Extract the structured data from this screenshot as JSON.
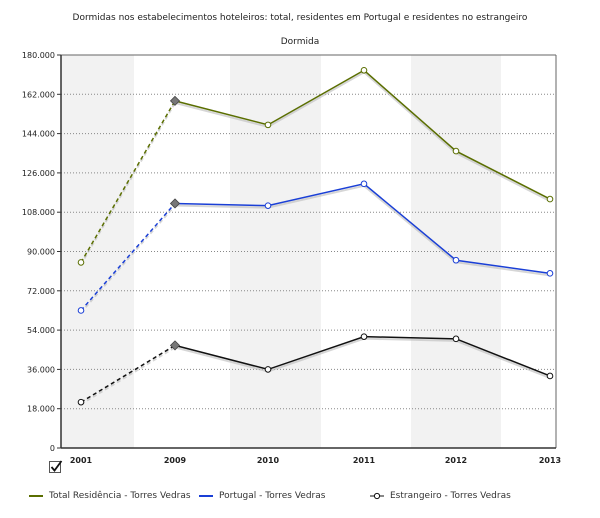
{
  "chart_data": {
    "type": "line",
    "title": "Dormidas nos estabelecimentos hoteleiros: total, residentes em Portugal e residentes no estrangeiro",
    "subtitle": "Dormida",
    "xlabel": "",
    "ylabel": "",
    "categories": [
      "2001",
      "2009",
      "2010",
      "2011",
      "2012",
      "2013"
    ],
    "ylim": [
      0,
      180000
    ],
    "yticks": [
      "0",
      "18.000",
      "36.000",
      "54.000",
      "72.000",
      "90.000",
      "108.000",
      "126.000",
      "144.000",
      "162.000",
      "180.000"
    ],
    "grid": true,
    "legend_position": "bottom",
    "series": [
      {
        "name": "Total Residência - Torres Vedras",
        "color": "#5a6e00",
        "values": [
          85000,
          159000,
          148000,
          173000,
          136000,
          114000
        ]
      },
      {
        "name": "Portugal - Torres Vedras",
        "color": "#1a3fd6",
        "values": [
          63000,
          112000,
          111000,
          121000,
          86000,
          80000
        ]
      },
      {
        "name": "Estrangeiro - Torres Vedras",
        "color": "#111111",
        "values": [
          21000,
          47000,
          36000,
          51000,
          50000,
          33000
        ]
      }
    ]
  }
}
